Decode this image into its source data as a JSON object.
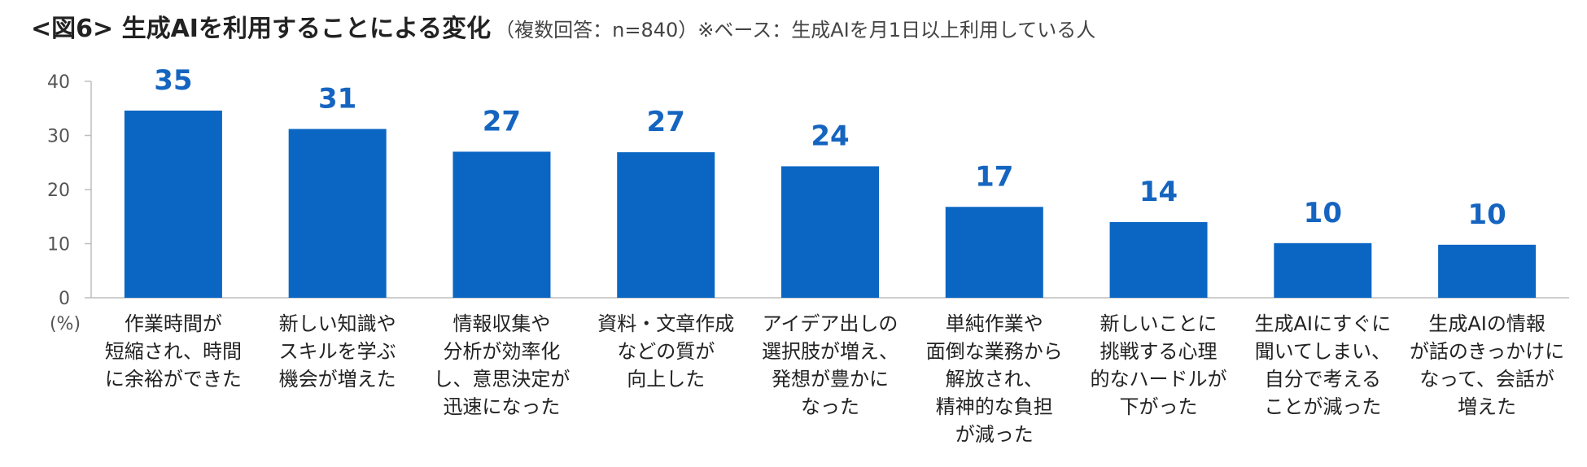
{
  "header": {
    "title": "<図6> 生成AIを利用することによる変化",
    "note": "（複数回答：n=840）※ベース：生成AIを月1日以上利用している人"
  },
  "chart_data": {
    "type": "bar",
    "title": "<図6> 生成AIを利用することによる変化",
    "ylabel": "(%)",
    "ylim": [
      0,
      40
    ],
    "yticks": [
      0,
      10,
      20,
      30,
      40
    ],
    "bar_color": "#0b66c3",
    "label_color": "#1565c0",
    "categories": [
      [
        "作業時間が",
        "短縮され、時間",
        "に余裕ができた"
      ],
      [
        "新しい知識や",
        "スキルを学ぶ",
        "機会が増えた"
      ],
      [
        "情報収集や",
        "分析が効率化",
        "し、意思決定が",
        "迅速になった"
      ],
      [
        "資料・文章作成",
        "などの質が",
        "向上した"
      ],
      [
        "アイデア出しの",
        "選択肢が増え、",
        "発想が豊かに",
        "なった"
      ],
      [
        "単純作業や",
        "面倒な業務から",
        "解放され、",
        "精神的な負担",
        "が減った"
      ],
      [
        "新しいことに",
        "挑戦する心理",
        "的なハードルが",
        "下がった"
      ],
      [
        "生成AIにすぐに",
        "聞いてしまい、",
        "自分で考える",
        "ことが減った"
      ],
      [
        "生成AIの情報",
        "が話のきっかけに",
        "なって、会話が",
        "増えた"
      ]
    ],
    "values": [
      35,
      31,
      27,
      27,
      24,
      17,
      14,
      10,
      10
    ],
    "plotted_values": [
      34.6,
      31.2,
      27.0,
      26.9,
      24.3,
      16.8,
      14.0,
      10.1,
      9.8
    ]
  }
}
